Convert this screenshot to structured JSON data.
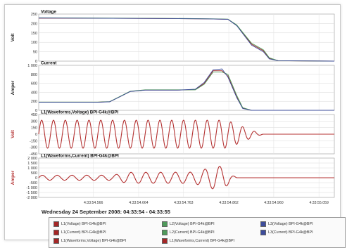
{
  "colors": {
    "red": "#a52626",
    "green": "#4f9a5b",
    "blue": "#3d4c9b",
    "black": "#252525",
    "wave": "#b43232"
  },
  "timeline_label": "Wednesday 24 September 2008: 04:33:54 - 04:33:55",
  "chart_data": [
    {
      "type": "line",
      "title": "Voltage",
      "ylabel": "Volt",
      "ylim": [
        0,
        250
      ],
      "yticks": [
        "250",
        "200",
        "150",
        "100",
        "50",
        "0"
      ],
      "x": [
        "4:33:54.566",
        "4:33:54.664",
        "4:33:54.763",
        "4:33:54.862",
        "4:33:54.960",
        "4:33:55.059"
      ],
      "series": [
        {
          "name": "L1(Voltage) BPI-G4k@BPI",
          "color": "#a52626",
          "points": [
            [
              0,
              228
            ],
            [
              0.18,
              228
            ],
            [
              0.45,
              226
            ],
            [
              0.58,
              224
            ],
            [
              0.64,
              222
            ],
            [
              0.67,
              190
            ],
            [
              0.72,
              90
            ],
            [
              0.76,
              55
            ],
            [
              0.78,
              15
            ],
            [
              0.81,
              2
            ],
            [
              1,
              0
            ]
          ]
        },
        {
          "name": "L2(Voltage) BPI-G4k@BPI",
          "color": "#4f9a5b",
          "points": [
            [
              0,
              230
            ],
            [
              0.18,
              229
            ],
            [
              0.45,
              227
            ],
            [
              0.58,
              225
            ],
            [
              0.64,
              223
            ],
            [
              0.67,
              192
            ],
            [
              0.72,
              95
            ],
            [
              0.76,
              60
            ],
            [
              0.78,
              18
            ],
            [
              0.81,
              2
            ],
            [
              1,
              0
            ]
          ]
        },
        {
          "name": "L3(Voltage) BPI-G4k@BPI",
          "color": "#3d4c9b",
          "points": [
            [
              0,
              229
            ],
            [
              0.18,
              228
            ],
            [
              0.45,
              226
            ],
            [
              0.58,
              224
            ],
            [
              0.64,
              222
            ],
            [
              0.67,
              188
            ],
            [
              0.72,
              85
            ],
            [
              0.76,
              50
            ],
            [
              0.78,
              12
            ],
            [
              0.81,
              2
            ],
            [
              1,
              0
            ]
          ]
        }
      ]
    },
    {
      "type": "line",
      "title": "Current",
      "ylabel": "Amper",
      "ylim": [
        0,
        1000
      ],
      "yticks": [
        "1 000",
        "800",
        "600",
        "400",
        "200",
        "0"
      ],
      "x": [
        "4:33:54.566",
        "4:33:54.664",
        "4:33:54.763",
        "4:33:54.862",
        "4:33:54.960",
        "4:33:55.059"
      ],
      "series": [
        {
          "name": "L1(Current) BPI-G4k@BPI",
          "color": "#a52626",
          "points": [
            [
              0,
              180
            ],
            [
              0.2,
              180
            ],
            [
              0.24,
              190
            ],
            [
              0.28,
              320
            ],
            [
              0.31,
              420
            ],
            [
              0.36,
              450
            ],
            [
              0.47,
              450
            ],
            [
              0.53,
              460
            ],
            [
              0.56,
              600
            ],
            [
              0.59,
              880
            ],
            [
              0.62,
              880
            ],
            [
              0.64,
              760
            ],
            [
              0.67,
              300
            ],
            [
              0.69,
              50
            ],
            [
              0.72,
              0
            ],
            [
              1,
              0
            ]
          ]
        },
        {
          "name": "L2(Current) BPI-G4k@BPI",
          "color": "#4f9a5b",
          "points": [
            [
              0,
              182
            ],
            [
              0.2,
              182
            ],
            [
              0.24,
              192
            ],
            [
              0.28,
              325
            ],
            [
              0.31,
              425
            ],
            [
              0.36,
              455
            ],
            [
              0.47,
              455
            ],
            [
              0.53,
              455
            ],
            [
              0.56,
              580
            ],
            [
              0.59,
              850
            ],
            [
              0.62,
              850
            ],
            [
              0.64,
              800
            ],
            [
              0.67,
              330
            ],
            [
              0.69,
              60
            ],
            [
              0.72,
              0
            ],
            [
              1,
              0
            ]
          ]
        },
        {
          "name": "L3(Current) BPI-G4k@BPI",
          "color": "#3d4c9b",
          "points": [
            [
              0,
              178
            ],
            [
              0.2,
              178
            ],
            [
              0.24,
              188
            ],
            [
              0.28,
              318
            ],
            [
              0.31,
              418
            ],
            [
              0.36,
              448
            ],
            [
              0.47,
              448
            ],
            [
              0.53,
              470
            ],
            [
              0.56,
              620
            ],
            [
              0.59,
              900
            ],
            [
              0.62,
              920
            ],
            [
              0.64,
              740
            ],
            [
              0.67,
              280
            ],
            [
              0.69,
              40
            ],
            [
              0.72,
              0
            ],
            [
              1,
              0
            ]
          ]
        }
      ]
    },
    {
      "type": "line",
      "title": "L1(Waveforms,Voltage) BPI-G4k@BPI",
      "ylabel": "Volt",
      "ylim": [
        -450,
        450
      ],
      "yticks": [
        "450",
        "300",
        "150",
        "0",
        "-150",
        "-300",
        "-450"
      ],
      "x": [
        "4:33:54.566",
        "4:33:54.664",
        "4:33:54.763",
        "4:33:54.862",
        "4:33:54.960",
        "4:33:55.059"
      ],
      "series": [
        {
          "name": "L1(Waveforms,Voltage) BPI-G4k@BPI",
          "color": "#b43232",
          "cycles": 25,
          "envelope": [
            [
              0,
              320
            ],
            [
              0.63,
              320
            ],
            [
              0.66,
              260
            ],
            [
              0.7,
              140
            ],
            [
              0.74,
              40
            ],
            [
              0.76,
              0
            ],
            [
              1,
              0
            ]
          ]
        }
      ]
    },
    {
      "type": "line",
      "title": "L1(Waveforms,Current) BPI-G4k@BPI",
      "ylabel": "Amper",
      "ylim": [
        -2000,
        2000
      ],
      "yticks": [
        "2 000",
        "1 500",
        "1 000",
        "500",
        "0",
        "-500",
        "-1 000",
        "-1 500",
        "-2 000"
      ],
      "x": [
        "4:33:54.566",
        "4:33:54.664",
        "4:33:54.763",
        "4:33:54.862",
        "4:33:54.960",
        "4:33:55.059"
      ],
      "series": [
        {
          "name": "L1(Waveforms,Current) BPI-G4k@BPI",
          "color": "#b43232",
          "cycles": 20,
          "envelope": [
            [
              0,
              250
            ],
            [
              0.25,
              260
            ],
            [
              0.3,
              550
            ],
            [
              0.52,
              570
            ],
            [
              0.56,
              850
            ],
            [
              0.6,
              1250
            ],
            [
              0.63,
              1050
            ],
            [
              0.65,
              350
            ],
            [
              0.67,
              0
            ],
            [
              1,
              0
            ]
          ]
        }
      ]
    }
  ],
  "legend": [
    {
      "label": "L1(Voltage) BPI-G4k@BPI",
      "color": "#a52626"
    },
    {
      "label": "L2(Voltage) BPI-G4k@BPI",
      "color": "#4f9a5b"
    },
    {
      "label": "L3(Voltage) BPI-G4k@BPI",
      "color": "#3d4c9b"
    },
    {
      "label": "L1(Current) BPI-G4k@BPI",
      "color": "#a52626"
    },
    {
      "label": "L2(Current) BPI-G4k@BPI",
      "color": "#4f9a5b"
    },
    {
      "label": "L3(Current) BPI-G4k@BPI",
      "color": "#3d4c9b"
    },
    {
      "label": "L1(Waveforms,Voltage) BPI-G4k@BPI",
      "color": "#a52626"
    },
    {
      "label": "L1(Waveforms,Current) BPI-G4k@BPI",
      "color": "#a52626"
    }
  ]
}
